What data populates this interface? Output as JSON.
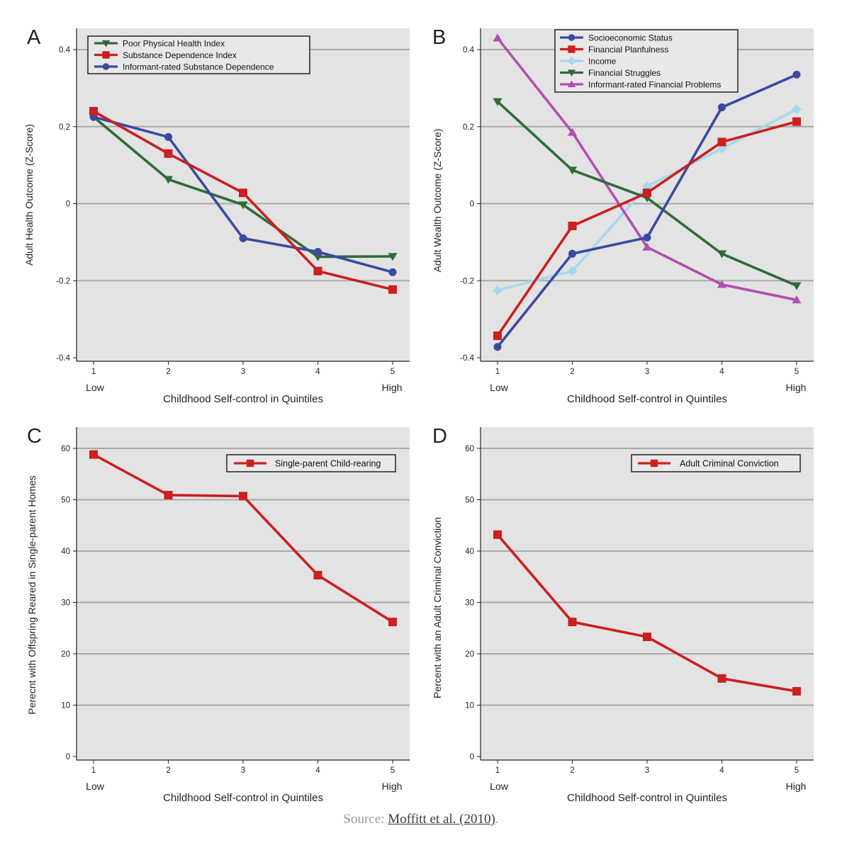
{
  "chart_data": [
    {
      "panel_letter": "A",
      "type": "line",
      "ylabel": "Adult Health Outcome (Z-Score)",
      "xlabel": "Childhood Self-control in Quintiles",
      "x": [
        1,
        2,
        3,
        4,
        5
      ],
      "x_low_label": "Low",
      "x_high_label": "High",
      "ylim": [
        -0.4,
        0.4
      ],
      "yticks": [
        -0.4,
        -0.2,
        0,
        0.2,
        0.4
      ],
      "ytick_labels": [
        "-0.4",
        "-0.2",
        "0",
        "0.2",
        "0.4"
      ],
      "grid": true,
      "legend_position": "top",
      "series": [
        {
          "name": "Poor Physical Health Index",
          "marker": "triangle-down",
          "color": "#2f6b3a",
          "values": [
            0.225,
            0.063,
            -0.003,
            -0.138,
            -0.137
          ]
        },
        {
          "name": "Substance Dependence Index",
          "marker": "square",
          "color": "#cc1f1f",
          "values": [
            0.24,
            0.13,
            0.028,
            -0.175,
            -0.223
          ]
        },
        {
          "name": "Informant-rated Substance Dependence",
          "marker": "circle",
          "color": "#3a4aa0",
          "values": [
            0.225,
            0.173,
            -0.09,
            -0.125,
            -0.178
          ]
        }
      ],
      "draw_order": [
        0,
        2,
        1
      ]
    },
    {
      "panel_letter": "B",
      "type": "line",
      "ylabel": "Adult Wealth Outcome (Z-Score)",
      "xlabel": "Childhood Self-control in Quintiles",
      "x": [
        1,
        2,
        3,
        4,
        5
      ],
      "x_low_label": "Low",
      "x_high_label": "High",
      "ylim": [
        -0.4,
        0.4
      ],
      "yticks": [
        -0.4,
        -0.2,
        0,
        0.2,
        0.4
      ],
      "ytick_labels": [
        "-0.4",
        "-0.2",
        "0",
        "0.2",
        "0.4"
      ],
      "grid": true,
      "legend_position": "top-right",
      "series": [
        {
          "name": "Socioeconomic Status",
          "marker": "circle",
          "color": "#3a4aa0",
          "values": [
            -0.372,
            -0.13,
            -0.088,
            0.25,
            0.335
          ]
        },
        {
          "name": "Financial Planfulness",
          "marker": "square",
          "color": "#cc1f1f",
          "values": [
            -0.343,
            -0.058,
            0.028,
            0.16,
            0.213
          ]
        },
        {
          "name": "Income",
          "marker": "diamond",
          "color": "#a6d8ef",
          "values": [
            -0.225,
            -0.175,
            0.045,
            0.143,
            0.245
          ]
        },
        {
          "name": "Financial Struggles",
          "marker": "triangle-down",
          "color": "#2f6b3a",
          "values": [
            0.265,
            0.087,
            0.015,
            -0.13,
            -0.213
          ]
        },
        {
          "name": "Informant-rated Financial Problems",
          "marker": "triangle-up",
          "color": "#b050b0",
          "values": [
            0.43,
            0.185,
            -0.113,
            -0.21,
            -0.25
          ]
        }
      ],
      "draw_order": [
        2,
        4,
        3,
        0,
        1
      ]
    },
    {
      "panel_letter": "C",
      "type": "line",
      "ylabel": "Perecnt with Offspring Reared in Single-parent Homes",
      "xlabel": "Childhood Self-control in Quintiles",
      "x": [
        1,
        2,
        3,
        4,
        5
      ],
      "x_low_label": "Low",
      "x_high_label": "High",
      "ylim": [
        0,
        60
      ],
      "yticks": [
        0,
        10,
        20,
        30,
        40,
        50,
        60
      ],
      "ytick_labels": [
        "0",
        "10",
        "20",
        "30",
        "40",
        "50",
        "60"
      ],
      "grid": true,
      "legend_position": "top-right",
      "series": [
        {
          "name": "Single-parent Child-rearing",
          "marker": "square",
          "color": "#cc1f1f",
          "values": [
            58.8,
            50.9,
            50.7,
            35.3,
            26.2
          ]
        }
      ],
      "draw_order": [
        0
      ]
    },
    {
      "panel_letter": "D",
      "type": "line",
      "ylabel": "Percent with an Adult Criminal Conviction",
      "xlabel": "Childhood Self-control in Quintiles",
      "x": [
        1,
        2,
        3,
        4,
        5
      ],
      "x_low_label": "Low",
      "x_high_label": "High",
      "ylim": [
        0,
        60
      ],
      "yticks": [
        0,
        10,
        20,
        30,
        40,
        50,
        60
      ],
      "ytick_labels": [
        "0",
        "10",
        "20",
        "30",
        "40",
        "50",
        "60"
      ],
      "grid": true,
      "legend_position": "top-right",
      "series": [
        {
          "name": "Adult Criminal Conviction",
          "marker": "square",
          "color": "#cc1f1f",
          "values": [
            43.2,
            26.2,
            23.3,
            15.2,
            12.7
          ]
        }
      ],
      "draw_order": [
        0
      ]
    }
  ],
  "source": {
    "prefix": "Source: ",
    "link_text": "Moffitt et al. (2010)",
    "suffix": "."
  }
}
